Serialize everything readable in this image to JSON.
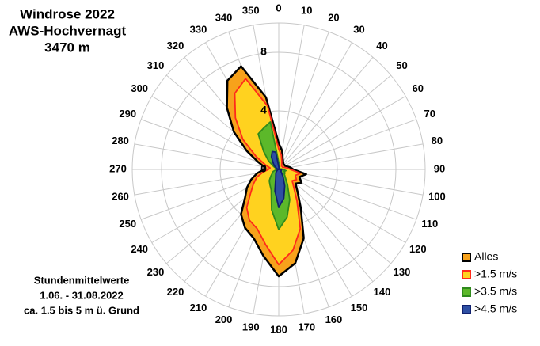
{
  "chart_data": {
    "type": "radar",
    "title_lines": [
      "Windrose 2022",
      "AWS-Hochvernagt",
      "3470 m"
    ],
    "note_lines": [
      "Stundenmittelwerte",
      "1.06. - 31.08.2022",
      "ca. 1.5 bis 5 m ü. Grund"
    ],
    "categories": [
      0,
      10,
      20,
      30,
      40,
      50,
      60,
      70,
      80,
      90,
      100,
      110,
      120,
      130,
      140,
      150,
      160,
      170,
      180,
      190,
      200,
      210,
      220,
      230,
      240,
      250,
      260,
      270,
      280,
      290,
      300,
      310,
      320,
      330,
      340,
      350
    ],
    "rlim": [
      0,
      10
    ],
    "rticks": [
      0,
      4,
      8
    ],
    "grid": true,
    "legend": "lower-right",
    "series": [
      {
        "name": "Alles",
        "color": "#000000",
        "fill": "#f7a21b",
        "values": [
          1.8,
          1.3,
          0.8,
          0.6,
          0.5,
          0.5,
          0.5,
          0.6,
          0.8,
          1.0,
          1.9,
          1.5,
          1.8,
          1.5,
          2.0,
          3.0,
          5.0,
          6.5,
          7.3,
          6.0,
          5.0,
          4.6,
          4.0,
          3.0,
          2.5,
          2.0,
          1.5,
          1.0,
          1.0,
          1.5,
          2.5,
          4.0,
          5.5,
          7.0,
          7.5,
          5.0
        ]
      },
      {
        "name": ">1.5 m/s",
        "color": "#ff2a1a",
        "fill": "#ffd21f",
        "values": [
          1.4,
          1.0,
          0.6,
          0.4,
          0.3,
          0.3,
          0.3,
          0.4,
          0.6,
          0.8,
          1.5,
          1.2,
          1.4,
          1.2,
          1.6,
          2.5,
          4.3,
          5.6,
          6.5,
          5.2,
          4.3,
          4.0,
          3.4,
          2.5,
          2.0,
          1.6,
          1.1,
          0.7,
          0.6,
          1.0,
          1.8,
          3.2,
          4.6,
          6.0,
          6.6,
          4.4
        ]
      },
      {
        "name": ">3.5 m/s",
        "color": "#2f8a1c",
        "fill": "#5cb82a",
        "values": [
          0.5,
          0.3,
          0.2,
          0.1,
          0.1,
          0.1,
          0.1,
          0.1,
          0.2,
          0.3,
          0.5,
          0.4,
          0.5,
          0.5,
          0.7,
          1.2,
          2.2,
          3.3,
          4.1,
          2.8,
          1.5,
          1.2,
          1.0,
          0.7,
          0.5,
          0.4,
          0.2,
          0.1,
          0.1,
          0.2,
          0.4,
          0.9,
          1.6,
          2.8,
          3.0,
          3.3
        ]
      },
      {
        "name": ">4.5 m/s",
        "color": "#10206e",
        "fill": "#2e4fa3",
        "values": [
          0.2,
          0.1,
          0.1,
          0,
          0,
          0,
          0,
          0,
          0.1,
          0.1,
          0.2,
          0.1,
          0.2,
          0.2,
          0.3,
          0.6,
          1.2,
          2.0,
          2.6,
          1.5,
          0.6,
          0.4,
          0.3,
          0.2,
          0.1,
          0.1,
          0.1,
          0,
          0,
          0.1,
          0.2,
          0.4,
          0.6,
          1.0,
          1.3,
          1.2
        ]
      }
    ]
  }
}
